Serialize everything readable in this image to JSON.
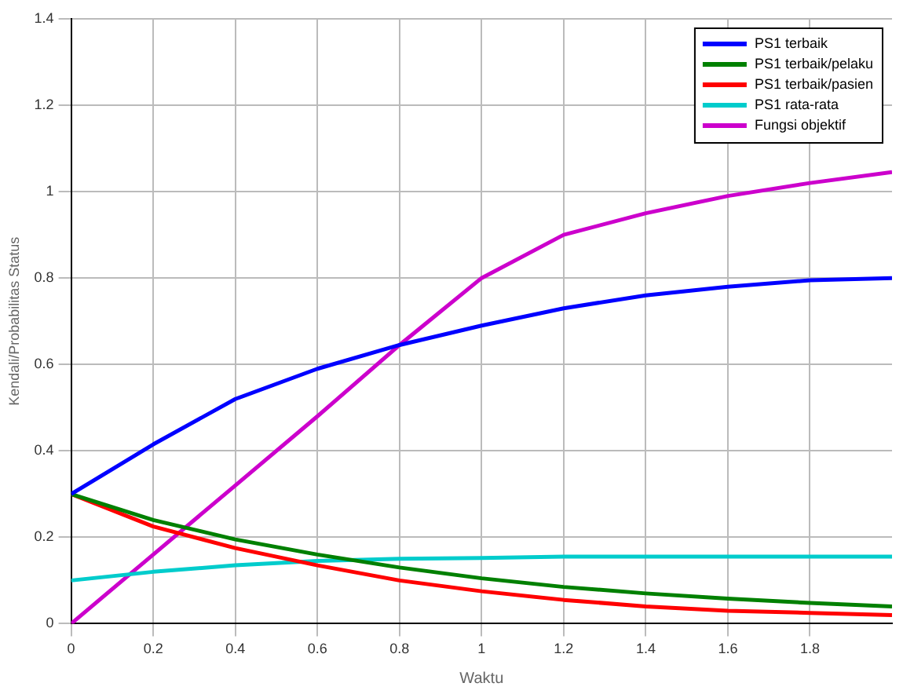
{
  "chart_data": {
    "type": "line",
    "xlabel": "Waktu",
    "ylabel": "Kendali/Probabilitas Status",
    "x": [
      0,
      0.2,
      0.4,
      0.6,
      0.8,
      1,
      1.2,
      1.4,
      1.6,
      1.8,
      2
    ],
    "xlim": [
      0,
      2
    ],
    "xticks": [
      0,
      0.2,
      0.4,
      0.6,
      0.8,
      1,
      1.2,
      1.4,
      1.6,
      1.8
    ],
    "ylim": [
      0,
      1.4
    ],
    "yticks": [
      0,
      0.2,
      0.4,
      0.6,
      0.8,
      1,
      1.2,
      1.4
    ],
    "grid": true,
    "legend": "top right",
    "marker": "none",
    "line_style": "solid",
    "series": [
      {
        "name": "PS1 terbaik",
        "color": "#0000ff",
        "values": [
          0.3,
          0.415,
          0.52,
          0.59,
          0.645,
          0.69,
          0.73,
          0.76,
          0.78,
          0.795,
          0.8
        ]
      },
      {
        "name": "PS1 terbaik/pelaku",
        "color": "#008000",
        "values": [
          0.3,
          0.24,
          0.195,
          0.16,
          0.13,
          0.105,
          0.085,
          0.07,
          0.058,
          0.048,
          0.04
        ]
      },
      {
        "name": "PS1 terbaik/pasien",
        "color": "#ff0000",
        "values": [
          0.3,
          0.225,
          0.175,
          0.135,
          0.1,
          0.075,
          0.055,
          0.04,
          0.03,
          0.025,
          0.02
        ]
      },
      {
        "name": "PS1 rata-rata",
        "color": "#00cccc",
        "values": [
          0.1,
          0.12,
          0.135,
          0.145,
          0.15,
          0.152,
          0.155,
          0.155,
          0.155,
          0.155,
          0.155
        ]
      },
      {
        "name": "Fungsi objektif",
        "color": "#cc00cc",
        "values": [
          0,
          0.16,
          0.32,
          0.48,
          0.645,
          0.8,
          0.9,
          0.95,
          0.99,
          1.02,
          1.045
        ]
      }
    ]
  }
}
